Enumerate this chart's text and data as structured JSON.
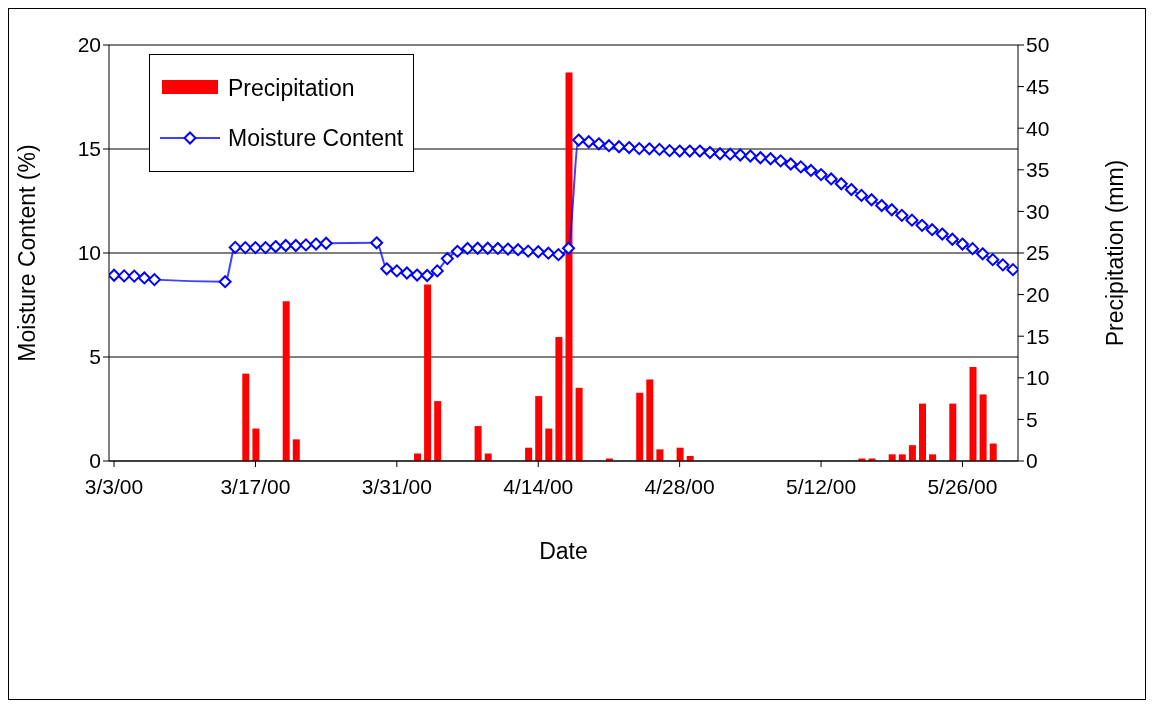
{
  "chart_data": {
    "type": "bar",
    "xlabel": "Date",
    "ylabel": "Moisture Content (%)",
    "y2label": "Precipitation (mm)",
    "xlim": [
      "2000-03-02T12:00",
      "2000-05-31T12:00"
    ],
    "xticks": [
      {
        "value": "2000-03-03",
        "label": "3/3/00"
      },
      {
        "value": "2000-03-17",
        "label": "3/17/00"
      },
      {
        "value": "2000-03-31",
        "label": "3/31/00"
      },
      {
        "value": "2000-04-14",
        "label": "4/14/00"
      },
      {
        "value": "2000-04-28",
        "label": "4/28/00"
      },
      {
        "value": "2000-05-12",
        "label": "5/12/00"
      },
      {
        "value": "2000-05-26",
        "label": "5/26/00"
      }
    ],
    "ylim": [
      0,
      20
    ],
    "yticks": [
      0,
      5,
      10,
      15,
      20
    ],
    "y2lim": [
      0,
      50
    ],
    "y2ticks": [
      0,
      5,
      10,
      15,
      20,
      25,
      30,
      35,
      40,
      45,
      50
    ],
    "grid": "y",
    "legend": "top left",
    "series": [
      {
        "name": "Precipitation",
        "axis": "y2",
        "color": "#ff0000",
        "x": [
          "2000-03-16",
          "2000-03-17",
          "2000-03-20",
          "2000-03-21",
          "2000-04-02",
          "2000-04-03",
          "2000-04-04",
          "2000-04-08",
          "2000-04-09",
          "2000-04-13",
          "2000-04-14",
          "2000-04-15",
          "2000-04-16",
          "2000-04-17",
          "2000-04-18",
          "2000-04-21",
          "2000-04-24",
          "2000-04-25",
          "2000-04-26",
          "2000-04-28",
          "2000-04-29",
          "2000-05-16",
          "2000-05-17",
          "2000-05-19",
          "2000-05-20",
          "2000-05-21",
          "2000-05-22",
          "2000-05-23",
          "2000-05-25",
          "2000-05-27",
          "2000-05-28",
          "2000-05-29"
        ],
        "values": [
          10.5,
          3.9,
          19.2,
          2.6,
          0.9,
          21.2,
          7.2,
          4.2,
          0.9,
          1.6,
          7.8,
          3.9,
          14.9,
          46.7,
          8.8,
          0.3,
          8.2,
          9.8,
          1.4,
          1.6,
          0.6,
          0.3,
          0.3,
          0.8,
          0.8,
          1.9,
          6.9,
          0.8,
          6.9,
          11.3,
          8.0,
          2.1
        ]
      },
      {
        "name": "Moisture Content",
        "type": "line",
        "color": "#0000ff",
        "marker": "diamond",
        "line_style": "solid",
        "x": [
          "2000-03-03",
          "2000-03-04",
          "2000-03-05",
          "2000-03-06",
          "2000-03-07",
          "2000-03-14",
          "2000-03-15",
          "2000-03-16",
          "2000-03-17",
          "2000-03-18",
          "2000-03-19",
          "2000-03-20",
          "2000-03-21",
          "2000-03-22",
          "2000-03-23",
          "2000-03-24",
          "2000-03-29",
          "2000-03-30",
          "2000-03-31",
          "2000-04-01",
          "2000-04-02",
          "2000-04-03",
          "2000-04-04",
          "2000-04-05",
          "2000-04-06",
          "2000-04-07",
          "2000-04-08",
          "2000-04-09",
          "2000-04-10",
          "2000-04-11",
          "2000-04-12",
          "2000-04-13",
          "2000-04-14",
          "2000-04-15",
          "2000-04-16",
          "2000-04-17",
          "2000-04-18",
          "2000-04-19",
          "2000-04-20",
          "2000-04-21",
          "2000-04-22",
          "2000-04-23",
          "2000-04-24",
          "2000-04-25",
          "2000-04-26",
          "2000-04-27",
          "2000-04-28",
          "2000-04-29",
          "2000-04-30",
          "2000-05-01",
          "2000-05-02",
          "2000-05-03",
          "2000-05-04",
          "2000-05-05",
          "2000-05-06",
          "2000-05-07",
          "2000-05-08",
          "2000-05-09",
          "2000-05-10",
          "2000-05-11",
          "2000-05-12",
          "2000-05-13",
          "2000-05-14",
          "2000-05-15",
          "2000-05-16",
          "2000-05-17",
          "2000-05-18",
          "2000-05-19",
          "2000-05-20",
          "2000-05-21",
          "2000-05-22",
          "2000-05-23",
          "2000-05-24",
          "2000-05-25",
          "2000-05-26",
          "2000-05-27",
          "2000-05-28",
          "2000-05-29",
          "2000-05-30",
          "2000-05-31"
        ],
        "values": [
          8.93,
          8.9,
          8.89,
          8.8,
          8.72,
          8.62,
          10.27,
          10.26,
          10.26,
          10.26,
          10.31,
          10.36,
          10.36,
          10.39,
          10.43,
          10.47,
          10.49,
          9.24,
          9.14,
          9.04,
          8.94,
          8.92,
          9.14,
          9.73,
          10.08,
          10.22,
          10.23,
          10.23,
          10.22,
          10.19,
          10.16,
          10.09,
          10.06,
          9.99,
          9.92,
          10.23,
          15.43,
          15.35,
          15.25,
          15.16,
          15.11,
          15.07,
          15.02,
          15.01,
          14.98,
          14.92,
          14.9,
          14.9,
          14.9,
          14.83,
          14.77,
          14.75,
          14.71,
          14.66,
          14.58,
          14.53,
          14.43,
          14.28,
          14.14,
          13.97,
          13.77,
          13.56,
          13.33,
          13.05,
          12.77,
          12.56,
          12.28,
          12.08,
          11.81,
          11.58,
          11.33,
          11.12,
          10.91,
          10.66,
          10.43,
          10.21,
          9.96,
          9.68,
          9.43,
          9.2
        ]
      }
    ]
  }
}
